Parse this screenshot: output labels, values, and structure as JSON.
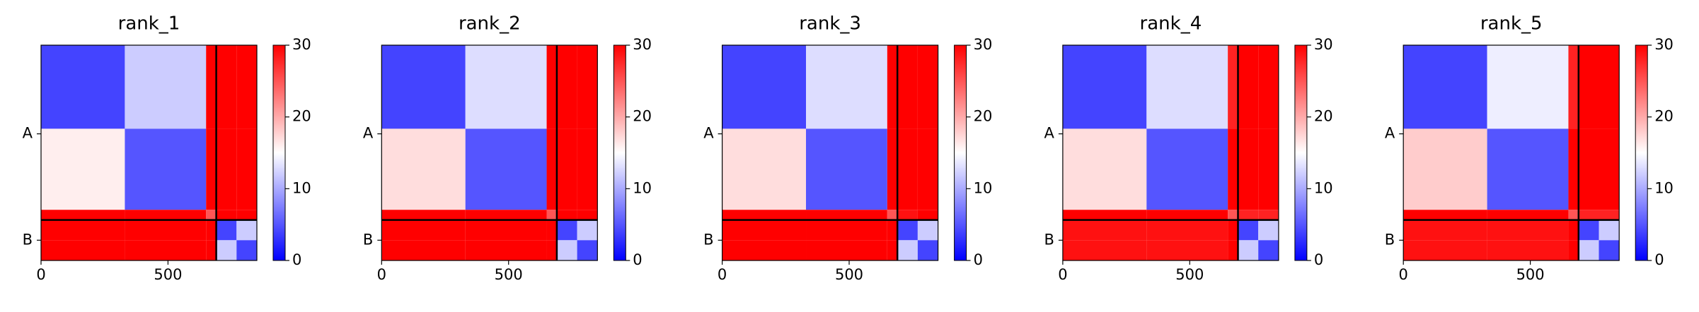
{
  "chart_data": [
    {
      "type": "heatmap",
      "title": "rank_1",
      "segments": [
        0,
        330,
        650,
        690,
        770,
        850
      ],
      "values": [
        [
          4,
          12,
          30,
          30,
          30
        ],
        [
          16,
          5,
          30,
          30,
          30
        ],
        [
          30,
          30,
          25,
          30,
          30
        ],
        [
          30,
          30,
          30,
          4,
          12
        ],
        [
          30,
          30,
          30,
          12,
          4
        ]
      ],
      "colors": [
        "#0000ff",
        "#ffffff",
        "#ff0000"
      ],
      "chain_breaks": [
        690
      ],
      "xlim": [
        0,
        850
      ],
      "xticks": [
        0,
        500
      ],
      "ylim": [
        850,
        0
      ],
      "yticks": [
        {
          "value": 350,
          "label": "A"
        },
        {
          "value": 770,
          "label": "B"
        }
      ],
      "clim": [
        0,
        30
      ],
      "cticks": [
        0,
        10,
        20,
        30
      ]
    },
    {
      "type": "heatmap",
      "title": "rank_2",
      "segments": [
        0,
        330,
        650,
        690,
        770,
        850
      ],
      "values": [
        [
          4,
          13,
          30,
          30,
          30
        ],
        [
          17,
          5,
          30,
          30,
          30
        ],
        [
          30,
          30,
          25,
          30,
          30
        ],
        [
          30,
          30,
          30,
          4,
          12
        ],
        [
          30,
          30,
          30,
          12,
          4
        ]
      ],
      "colors": [
        "#0000ff",
        "#ffffff",
        "#ff0000"
      ],
      "chain_breaks": [
        690
      ],
      "xlim": [
        0,
        850
      ],
      "xticks": [
        0,
        500
      ],
      "ylim": [
        850,
        0
      ],
      "yticks": [
        {
          "value": 350,
          "label": "A"
        },
        {
          "value": 770,
          "label": "B"
        }
      ],
      "clim": [
        0,
        30
      ],
      "cticks": [
        0,
        10,
        20,
        30
      ]
    },
    {
      "type": "heatmap",
      "title": "rank_3",
      "segments": [
        0,
        330,
        650,
        690,
        770,
        850
      ],
      "values": [
        [
          4,
          13,
          30,
          30,
          30
        ],
        [
          17,
          5,
          30,
          30,
          30
        ],
        [
          30,
          30,
          25,
          29,
          30
        ],
        [
          30,
          30,
          30,
          4,
          12
        ],
        [
          30,
          30,
          30,
          12,
          4
        ]
      ],
      "colors": [
        "#0000ff",
        "#ffffff",
        "#ff0000"
      ],
      "chain_breaks": [
        690
      ],
      "xlim": [
        0,
        850
      ],
      "xticks": [
        0,
        500
      ],
      "ylim": [
        850,
        0
      ],
      "yticks": [
        {
          "value": 350,
          "label": "A"
        },
        {
          "value": 770,
          "label": "B"
        }
      ],
      "clim": [
        0,
        30
      ],
      "cticks": [
        0,
        10,
        20,
        30
      ]
    },
    {
      "type": "heatmap",
      "title": "rank_4",
      "segments": [
        0,
        330,
        650,
        690,
        770,
        850
      ],
      "values": [
        [
          4,
          13,
          28,
          30,
          30
        ],
        [
          17,
          5,
          30,
          30,
          30
        ],
        [
          30,
          30,
          25,
          28,
          28
        ],
        [
          29,
          29,
          30,
          4,
          12
        ],
        [
          29,
          29,
          30,
          12,
          4
        ]
      ],
      "colors": [
        "#0000ff",
        "#ffffff",
        "#ff0000"
      ],
      "chain_breaks": [
        690
      ],
      "xlim": [
        0,
        850
      ],
      "xticks": [
        0,
        500
      ],
      "ylim": [
        850,
        0
      ],
      "yticks": [
        {
          "value": 350,
          "label": "A"
        },
        {
          "value": 770,
          "label": "B"
        }
      ],
      "clim": [
        0,
        30
      ],
      "cticks": [
        0,
        10,
        20,
        30
      ]
    },
    {
      "type": "heatmap",
      "title": "rank_5",
      "segments": [
        0,
        330,
        650,
        690,
        770,
        850
      ],
      "values": [
        [
          4,
          14,
          28,
          30,
          30
        ],
        [
          18,
          5,
          30,
          30,
          30
        ],
        [
          30,
          30,
          25,
          28,
          28
        ],
        [
          29,
          29,
          30,
          4,
          12
        ],
        [
          29,
          29,
          30,
          12,
          4
        ]
      ],
      "colors": [
        "#0000ff",
        "#ffffff",
        "#ff0000"
      ],
      "chain_breaks": [
        690
      ],
      "xlim": [
        0,
        850
      ],
      "xticks": [
        0,
        500
      ],
      "ylim": [
        850,
        0
      ],
      "yticks": [
        {
          "value": 350,
          "label": "A"
        },
        {
          "value": 770,
          "label": "B"
        }
      ],
      "clim": [
        0,
        30
      ],
      "cticks": [
        0,
        10,
        20,
        30
      ]
    }
  ]
}
